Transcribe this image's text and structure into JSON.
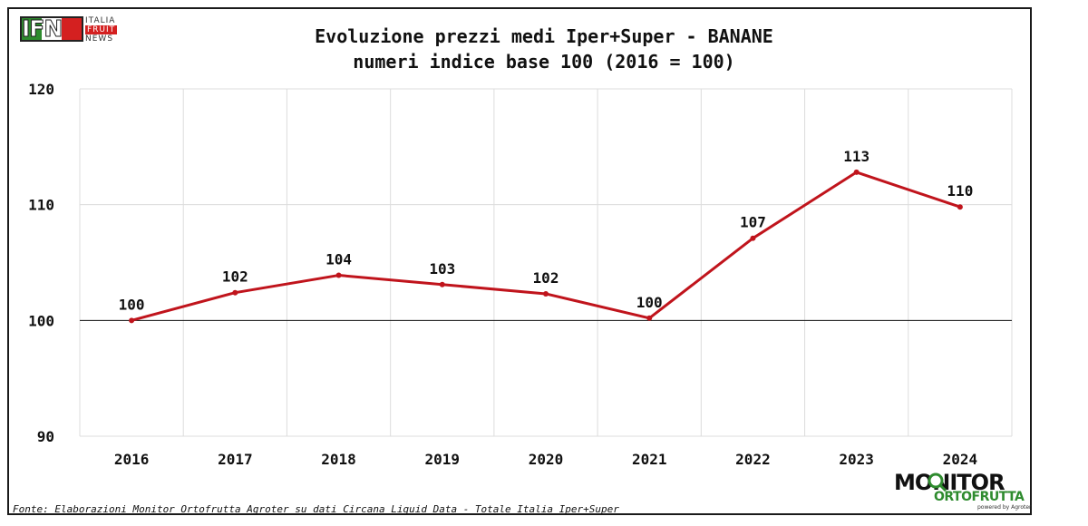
{
  "logo": {
    "brand_letters": "IFN",
    "line1": "ITALIA",
    "line2": "FRUIT",
    "line3": "NEWS",
    "colors": [
      "#2e8b2e",
      "#ffffff",
      "#d42020"
    ]
  },
  "source_text": "Fonte: Elaborazioni Monitor Ortofrutta Agroter su dati Circana Liquid Data - Totale Italia Iper+Super",
  "monitor_logo": {
    "word1": "MONITOR",
    "word2": "ORTOFRUTTA",
    "tagline": "powered by Agroter",
    "icon": "magnifier-icon"
  },
  "chart_data": {
    "type": "line",
    "title": "Evoluzione prezzi medi Iper+Super - BANANE",
    "subtitle": "numeri indice base 100 (2016 = 100)",
    "xlabel": "",
    "ylabel": "",
    "categories": [
      "2016",
      "2017",
      "2018",
      "2019",
      "2020",
      "2021",
      "2022",
      "2023",
      "2024"
    ],
    "series": [
      {
        "values": [
          100,
          102.4,
          103.9,
          103.1,
          102.3,
          100.2,
          107.1,
          112.8,
          109.8
        ],
        "labels": [
          "100",
          "102",
          "104",
          "103",
          "102",
          "100",
          "107",
          "113",
          "110"
        ],
        "color": "#c0141c"
      }
    ],
    "ylim": [
      90,
      120
    ],
    "yticks": [
      "90",
      "100",
      "110",
      "120"
    ],
    "reference_line": 100,
    "grid": true,
    "legend": "none"
  }
}
